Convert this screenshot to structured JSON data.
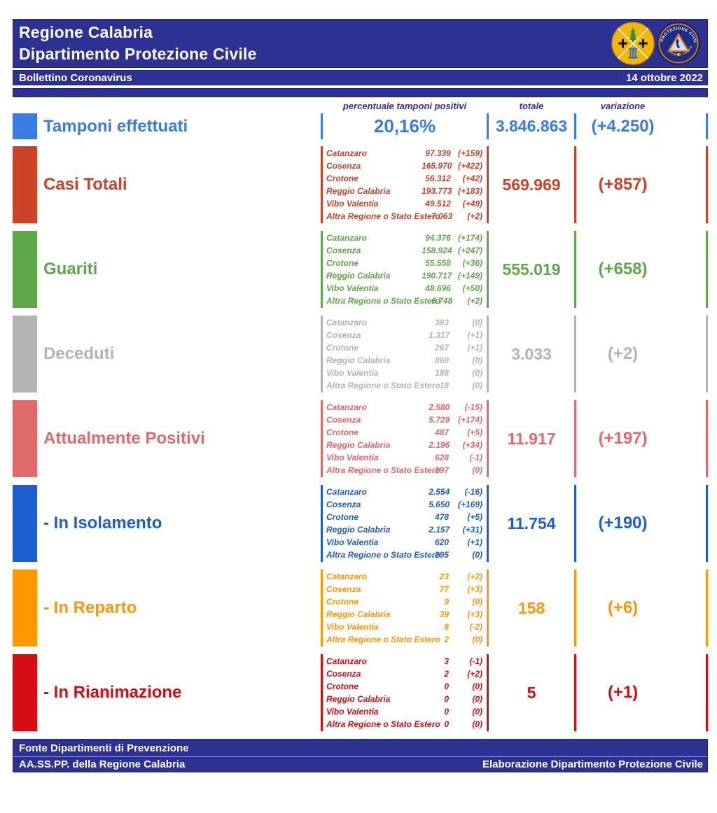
{
  "colors": {
    "navy": "#2d3192"
  },
  "header": {
    "title_line1": "Regione Calabria",
    "title_line2": "Dipartimento Protezione Civile",
    "bulletin_label": "Bollettino Coronavirus",
    "date": "14 ottobre 2022"
  },
  "logos": {
    "civil_protection_arc_top": "PROTEZIONE CIVILE",
    "civil_protection_arc_bottom": "Regione Calabria"
  },
  "table": {
    "column_headers": {
      "percent": "percentuale tamponi positivi",
      "total": "totale",
      "variation": "variazione"
    },
    "provinces": [
      "Catanzaro",
      "Cosenza",
      "Crotone",
      "Reggio Calabria",
      "Vibo Valentia",
      "Altra Regione o Stato Estero"
    ],
    "rows": [
      {
        "id": "tamponi-effettuati",
        "label": "Tamponi effettuati",
        "color": "#3a7ce0",
        "percent": "20,16%",
        "total": "3.846.863",
        "variation": "(+4.250)"
      },
      {
        "id": "casi-totali",
        "label": "Casi Totali",
        "color": "#cb4226",
        "total": "569.969",
        "variation": "(+857)",
        "details": [
          {
            "value": "97.339",
            "variation": "(+159)"
          },
          {
            "value": "165.970",
            "variation": "(+422)"
          },
          {
            "value": "56.312",
            "variation": "(+42)"
          },
          {
            "value": "193.773",
            "variation": "(+183)"
          },
          {
            "value": "49.512",
            "variation": "(+49)"
          },
          {
            "value": "7.063",
            "variation": "(+2)"
          }
        ]
      },
      {
        "id": "guariti",
        "label": "Guariti",
        "color": "#5fa849",
        "total": "555.019",
        "variation": "(+658)",
        "details": [
          {
            "value": "94.376",
            "variation": "(+174)"
          },
          {
            "value": "158.924",
            "variation": "(+247)"
          },
          {
            "value": "55.558",
            "variation": "(+36)"
          },
          {
            "value": "190.717",
            "variation": "(+149)"
          },
          {
            "value": "48.696",
            "variation": "(+50)"
          },
          {
            "value": "6.748",
            "variation": "(+2)"
          }
        ]
      },
      {
        "id": "deceduti",
        "label": "Deceduti",
        "color": "#b3b3b3",
        "total": "3.033",
        "variation": "(+2)",
        "details": [
          {
            "value": "383",
            "variation": "(0)"
          },
          {
            "value": "1.317",
            "variation": "(+1)"
          },
          {
            "value": "267",
            "variation": "(+1)"
          },
          {
            "value": "860",
            "variation": "(0)"
          },
          {
            "value": "188",
            "variation": "(0)"
          },
          {
            "value": "18",
            "variation": "(0)"
          }
        ]
      },
      {
        "id": "attualmente-positivi",
        "label": "Attualmente Positivi",
        "color": "#e06a6a",
        "total": "11.917",
        "variation": "(+197)",
        "details": [
          {
            "value": "2.580",
            "variation": "(-15)"
          },
          {
            "value": "5.729",
            "variation": "(+174)"
          },
          {
            "value": "487",
            "variation": "(+5)"
          },
          {
            "value": "2.196",
            "variation": "(+34)"
          },
          {
            "value": "628",
            "variation": "(-1)"
          },
          {
            "value": "297",
            "variation": "(0)"
          }
        ]
      },
      {
        "id": "in-isolamento",
        "label": "- In Isolamento",
        "color": "#1d5dce",
        "total": "11.754",
        "variation": "(+190)",
        "details": [
          {
            "value": "2.554",
            "variation": "(-16)"
          },
          {
            "value": "5.650",
            "variation": "(+169)"
          },
          {
            "value": "478",
            "variation": "(+5)"
          },
          {
            "value": "2.157",
            "variation": "(+31)"
          },
          {
            "value": "620",
            "variation": "(+1)"
          },
          {
            "value": "295",
            "variation": "(0)"
          }
        ]
      },
      {
        "id": "in-reparto",
        "label": "- In Reparto",
        "color": "#ff9800",
        "total": "158",
        "variation": "(+6)",
        "details": [
          {
            "value": "23",
            "variation": "(+2)"
          },
          {
            "value": "77",
            "variation": "(+3)"
          },
          {
            "value": "9",
            "variation": "(0)"
          },
          {
            "value": "39",
            "variation": "(+3)"
          },
          {
            "value": "8",
            "variation": "(-2)"
          },
          {
            "value": "2",
            "variation": "(0)"
          }
        ]
      },
      {
        "id": "in-rianimazione",
        "label": "- In Rianimazione",
        "color": "#d60d12",
        "total": "5",
        "variation": "(+1)",
        "details": [
          {
            "value": "3",
            "variation": "(-1)"
          },
          {
            "value": "2",
            "variation": "(+2)"
          },
          {
            "value": "0",
            "variation": "(0)"
          },
          {
            "value": "0",
            "variation": "(0)"
          },
          {
            "value": "0",
            "variation": "(0)"
          },
          {
            "value": "0",
            "variation": "(0)"
          }
        ]
      }
    ]
  },
  "footer": {
    "source_line1": "Fonte Dipartimenti di Prevenzione",
    "source_line2": "AA.SS.PP.  della Regione Calabria",
    "elaboration": "Elaborazione Dipartimento Protezione Civile"
  }
}
